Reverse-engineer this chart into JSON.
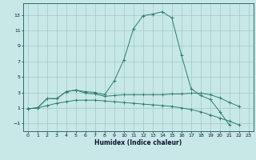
{
  "xlabel": "Humidex (Indice chaleur)",
  "x_values": [
    0,
    1,
    2,
    3,
    4,
    5,
    6,
    7,
    8,
    9,
    10,
    11,
    12,
    13,
    14,
    15,
    16,
    17,
    18,
    19,
    20,
    21,
    22,
    23
  ],
  "line1_y": [
    0.9,
    1.0,
    2.2,
    2.2,
    3.1,
    3.3,
    3.1,
    3.0,
    2.7,
    4.5,
    7.2,
    11.2,
    12.9,
    13.1,
    13.4,
    12.6,
    7.8,
    3.5,
    2.6,
    2.1,
    0.5,
    -1.2,
    null,
    null
  ],
  "line2_y": [
    0.9,
    1.0,
    2.2,
    2.2,
    3.1,
    3.3,
    2.9,
    2.8,
    2.5,
    2.6,
    2.7,
    2.7,
    2.7,
    2.7,
    2.7,
    2.8,
    2.8,
    2.9,
    2.9,
    2.7,
    2.3,
    1.7,
    1.2,
    null
  ],
  "line3_y": [
    0.9,
    1.0,
    1.3,
    1.6,
    1.8,
    2.0,
    2.0,
    2.0,
    1.9,
    1.8,
    1.7,
    1.6,
    1.5,
    1.4,
    1.3,
    1.2,
    1.0,
    0.8,
    0.5,
    0.1,
    -0.3,
    -0.7,
    -1.2,
    null
  ],
  "line_color": "#2d7d6e",
  "bg_color": "#c8e8e8",
  "grid_color": "#a0c8c8",
  "ylim": [
    -2,
    14.5
  ],
  "xlim": [
    -0.5,
    23.5
  ],
  "yticks": [
    -1,
    1,
    3,
    5,
    7,
    9,
    11,
    13
  ],
  "xticks": [
    0,
    1,
    2,
    3,
    4,
    5,
    6,
    7,
    8,
    9,
    10,
    11,
    12,
    13,
    14,
    15,
    16,
    17,
    18,
    19,
    20,
    21,
    22,
    23
  ]
}
